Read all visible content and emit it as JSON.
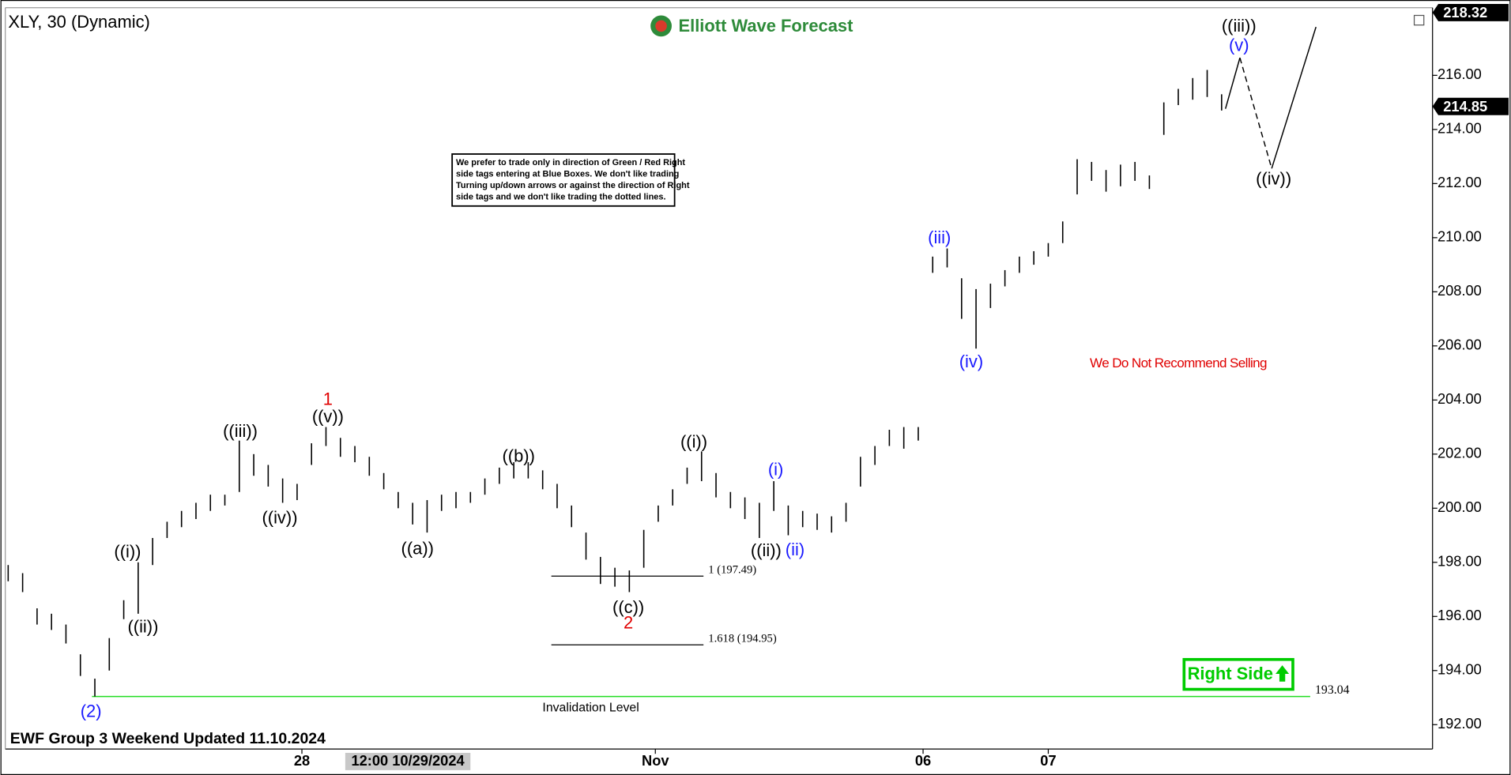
{
  "chart_data": {
    "type": "ohlc",
    "title": "XLY, 30 (Dynamic)",
    "brand": "Elliott Wave Forecast",
    "bar_color": "#000000",
    "grid": false,
    "ylim": [
      191.1,
      218.5
    ],
    "yticks": [
      {
        "value": 192,
        "label": "192.00"
      },
      {
        "value": 194,
        "label": "194.00"
      },
      {
        "value": 196,
        "label": "196.00"
      },
      {
        "value": 198,
        "label": "198.00"
      },
      {
        "value": 200,
        "label": "200.00"
      },
      {
        "value": 202,
        "label": "202.00"
      },
      {
        "value": 204,
        "label": "204.00"
      },
      {
        "value": 206,
        "label": "206.00"
      },
      {
        "value": 208,
        "label": "208.00"
      },
      {
        "value": 210,
        "label": "210.00"
      },
      {
        "value": 212,
        "label": "212.00"
      },
      {
        "value": 214,
        "label": "214.00"
      },
      {
        "value": 216,
        "label": "216.00"
      }
    ],
    "xlabels": [
      "28",
      "Nov",
      "06",
      "07"
    ],
    "cursor_date": "12:00 10/29/2024",
    "high": [
      197.9,
      197.6,
      196.3,
      196.1,
      195.7,
      194.6,
      193.7,
      195.2,
      196.6,
      198.0,
      198.9,
      199.5,
      199.9,
      200.2,
      200.5,
      200.5,
      202.5,
      202.0,
      201.6,
      201.1,
      200.9,
      202.4,
      203.0,
      202.6,
      202.3,
      201.9,
      201.3,
      200.6,
      200.2,
      200.3,
      200.5,
      200.6,
      200.6,
      201.1,
      201.5,
      201.7,
      201.7,
      201.4,
      200.9,
      200.1,
      199.1,
      198.2,
      197.8,
      197.7,
      199.2,
      200.1,
      200.7,
      201.5,
      202.1,
      201.3,
      200.6,
      200.4,
      200.2,
      201.0,
      200.1,
      199.9,
      199.8,
      199.7,
      200.2,
      201.9,
      202.3,
      202.9,
      203.0,
      203.0,
      209.3,
      209.6,
      208.5,
      208.1,
      208.3,
      208.8,
      209.3,
      209.5,
      209.8,
      210.6,
      212.9,
      212.8,
      212.5,
      212.7,
      212.8,
      212.3,
      215.0,
      215.5,
      215.9,
      216.2,
      215.3
    ],
    "low": [
      197.3,
      196.9,
      195.7,
      195.5,
      195.0,
      193.8,
      193.04,
      194.0,
      195.9,
      196.1,
      197.9,
      198.9,
      199.3,
      199.6,
      199.9,
      200.1,
      200.6,
      201.2,
      200.8,
      200.2,
      200.3,
      201.6,
      202.3,
      201.9,
      201.7,
      201.2,
      200.7,
      200.0,
      199.4,
      199.1,
      199.9,
      200.0,
      200.2,
      200.5,
      200.9,
      201.1,
      201.1,
      200.7,
      200.0,
      199.3,
      198.1,
      197.2,
      197.1,
      196.9,
      197.8,
      199.5,
      200.1,
      200.9,
      201.0,
      200.4,
      200.0,
      199.6,
      198.9,
      199.9,
      199.0,
      199.3,
      199.2,
      199.1,
      199.5,
      200.8,
      201.6,
      202.3,
      202.2,
      202.5,
      208.7,
      208.9,
      207.0,
      205.9,
      207.4,
      208.2,
      208.7,
      209.0,
      209.3,
      209.8,
      211.6,
      212.1,
      211.7,
      211.9,
      212.1,
      211.8,
      213.8,
      214.9,
      215.1,
      215.2,
      214.7
    ],
    "top_price": 218.32,
    "last_price": 214.85,
    "invalidation": {
      "value": 193.04,
      "label": "Invalidation Level",
      "color": "#22dd22"
    },
    "fib": [
      {
        "value": 197.49,
        "label": "1 (197.49)"
      },
      {
        "value": 194.95,
        "label": "1.618 (194.95)"
      }
    ],
    "waves": [
      {
        "text": "(2)",
        "color": "#1a1aff"
      },
      {
        "text": "((i))",
        "color": "#000000"
      },
      {
        "text": "((ii))",
        "color": "#000000"
      },
      {
        "text": "((iii))",
        "color": "#000000"
      },
      {
        "text": "((iv))",
        "color": "#000000"
      },
      {
        "text": "((v))",
        "color": "#000000"
      },
      {
        "text": "1",
        "color": "#e00000"
      },
      {
        "text": "((a))",
        "color": "#000000"
      },
      {
        "text": "((b))",
        "color": "#000000"
      },
      {
        "text": "((c))",
        "color": "#000000"
      },
      {
        "text": "2",
        "color": "#e00000"
      },
      {
        "text": "((i))",
        "color": "#000000"
      },
      {
        "text": "((ii))",
        "color": "#000000"
      },
      {
        "text": "(i)",
        "color": "#1a1aff"
      },
      {
        "text": "(ii)",
        "color": "#1a1aff"
      },
      {
        "text": "(iii)",
        "color": "#1a1aff"
      },
      {
        "text": "(iv)",
        "color": "#1a1aff"
      },
      {
        "text": "((iii))",
        "color": "#000000"
      },
      {
        "text": "(v)",
        "color": "#1a1aff"
      },
      {
        "text": "((iv))",
        "color": "#000000"
      }
    ],
    "note": [
      "We prefer to trade only in direction of Green / Red Right",
      "side tags entering at Blue Boxes. We don't like trading",
      "Turning up/down arrows or against the direction of Right",
      "side tags and we don't like trading the dotted lines."
    ],
    "warning": {
      "text": "We Do Not Recommend Selling",
      "color": "#e00000"
    },
    "badge": {
      "text": "Right Side",
      "color": "#00cc00"
    },
    "footer": "EWF Group 3 Weekend Updated 11.10.2024"
  }
}
